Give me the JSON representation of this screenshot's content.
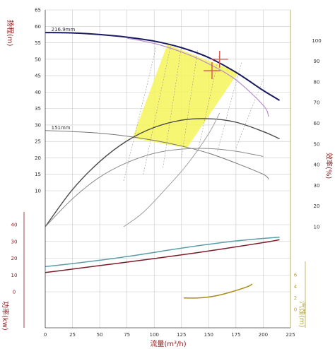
{
  "chart_data": {
    "type": "line",
    "title": "",
    "colors": {
      "head_max": "#1a1a60",
      "head_rated": "#b78fcf",
      "efficiency": "#555555",
      "iso_efficiency": "#999999",
      "npsh": "#a88f1a",
      "power_upper": "#5b9ea7",
      "power_lower": "#7c1c2a",
      "operating_zone": "#f6f55a",
      "marker": "#d9534f",
      "grid": "#c8c8c8",
      "axis_red": "#8b1a1a",
      "axis_olive": "#b5a642"
    },
    "axes": {
      "x": {
        "label": "流量(m³/h)",
        "range": [
          0,
          225
        ],
        "ticks": [
          "0",
          "25",
          "50",
          "75",
          "100",
          "125",
          "150",
          "175",
          "200",
          "225"
        ],
        "grid": true
      },
      "head": {
        "label": "扬程(m)",
        "range": [
          10,
          65
        ],
        "ticks": [
          "10",
          "15",
          "20",
          "25",
          "30",
          "35",
          "40",
          "45",
          "50",
          "55",
          "60",
          "65"
        ]
      },
      "efficiency": {
        "label": "效率(%)",
        "range": [
          10,
          110
        ],
        "ticks": [
          "10",
          "20",
          "30",
          "40",
          "50",
          "60",
          "70",
          "80",
          "90",
          "100"
        ]
      },
      "power": {
        "label": "功率(kw)",
        "range": [
          0,
          40
        ],
        "ticks": [
          "0",
          "10",
          "20",
          "30",
          "40"
        ]
      },
      "npsh": {
        "label": "汽蚀(m)",
        "ticks": [
          "0",
          "2",
          "4",
          "6"
        ]
      }
    },
    "annotations": [
      {
        "text": "216.9mm",
        "x": 3,
        "y": 58.1
      },
      {
        "text": "151mm",
        "x": 3,
        "y": 28.3
      }
    ],
    "operating_points": [
      {
        "x": 160,
        "y": 50
      },
      {
        "x": 153,
        "y": 46.5
      }
    ],
    "series": [
      {
        "key": "head_max",
        "axis": "head",
        "x": [
          0,
          25,
          50,
          75,
          100,
          125,
          150,
          175,
          200,
          215
        ],
        "values": [
          58.1,
          58.0,
          57.5,
          56.7,
          55.5,
          53.5,
          50.5,
          46.0,
          40.5,
          37.5
        ]
      },
      {
        "key": "head_rated",
        "axis": "head",
        "x": [
          75,
          100,
          125,
          150,
          175,
          200,
          205
        ],
        "values": [
          56.4,
          54.8,
          52.2,
          48.6,
          43.7,
          36.0,
          32.5
        ]
      },
      {
        "key": "head_min",
        "axis": "head",
        "x": [
          0,
          25,
          50,
          75,
          100,
          125,
          150,
          175,
          200,
          205
        ],
        "values": [
          28.3,
          28.0,
          27.5,
          26.6,
          25.3,
          23.6,
          21.4,
          18.4,
          15.0,
          13.5
        ]
      },
      {
        "key": "efficiency_max",
        "axis": "efficiency",
        "x": [
          0,
          25,
          50,
          75,
          100,
          125,
          150,
          175,
          200,
          215
        ],
        "values": [
          10.0,
          28.0,
          41.5,
          51.5,
          58.0,
          61.5,
          62.2,
          60.5,
          56.0,
          52.5
        ]
      },
      {
        "key": "efficiency_min",
        "axis": "efficiency",
        "x": [
          0,
          25,
          50,
          75,
          100,
          125,
          150,
          175,
          200
        ],
        "values": [
          10.0,
          23.5,
          34.0,
          41.0,
          45.5,
          47.5,
          47.8,
          46.5,
          44.0
        ]
      },
      {
        "key": "efficiency_min_scaled",
        "axis": "efficiency",
        "x": [
          72,
          90,
          110,
          130,
          150,
          160
        ],
        "values": [
          10,
          17,
          28,
          40,
          55,
          65
        ]
      },
      {
        "key": "power_upper",
        "axis": "power",
        "x": [
          0,
          25,
          50,
          75,
          100,
          125,
          150,
          175,
          200,
          215
        ],
        "values": [
          15.0,
          16.8,
          18.8,
          21.0,
          23.5,
          26.0,
          28.3,
          30.3,
          31.8,
          32.5
        ]
      },
      {
        "key": "power_lower",
        "axis": "power",
        "x": [
          0,
          25,
          50,
          75,
          100,
          125,
          150,
          175,
          200,
          215
        ],
        "values": [
          11.5,
          13.5,
          15.6,
          17.7,
          19.8,
          22.0,
          24.3,
          26.8,
          29.3,
          31.0
        ]
      },
      {
        "key": "npsh",
        "axis": "npsh",
        "x": [
          127,
          140,
          155,
          170,
          185,
          190
        ],
        "values": [
          2.0,
          2.0,
          2.3,
          3.0,
          3.9,
          4.4
        ]
      }
    ],
    "operating_zone": {
      "axis": "head",
      "polygon": [
        [
          80,
          26
        ],
        [
          112,
          54.5
        ],
        [
          177,
          46
        ],
        [
          130,
          23
        ]
      ]
    },
    "iso_efficiency_lines": [
      [
        [
          72,
          13
        ],
        [
          102,
          54
        ]
      ],
      [
        [
          90,
          15
        ],
        [
          115,
          54
        ]
      ],
      [
        [
          108,
          17
        ],
        [
          125,
          54
        ]
      ],
      [
        [
          125,
          20
        ],
        [
          140,
          53
        ]
      ],
      [
        [
          140,
          22
        ],
        [
          160,
          52
        ]
      ],
      [
        [
          158,
          22
        ],
        [
          180,
          49
        ]
      ],
      [
        [
          175,
          23
        ],
        [
          200,
          44
        ]
      ]
    ]
  }
}
